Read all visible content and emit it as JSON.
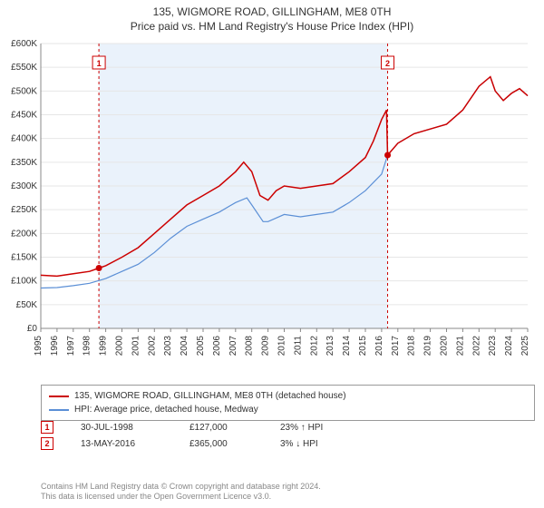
{
  "title": "135, WIGMORE ROAD, GILLINGHAM, ME8 0TH",
  "subtitle": "Price paid vs. HM Land Registry's House Price Index (HPI)",
  "chart": {
    "type": "line",
    "ylim": [
      0,
      600000
    ],
    "ytick_step": 50000,
    "ytick_labels": [
      "£0",
      "£50K",
      "£100K",
      "£150K",
      "£200K",
      "£250K",
      "£300K",
      "£350K",
      "£400K",
      "£450K",
      "£500K",
      "£550K",
      "£600K"
    ],
    "xlim": [
      1995,
      2025
    ],
    "xtick_step": 1,
    "xtick_labels": [
      "1995",
      "1996",
      "1997",
      "1998",
      "1999",
      "2000",
      "2001",
      "2002",
      "2003",
      "2004",
      "2005",
      "2006",
      "2007",
      "2008",
      "2009",
      "2010",
      "2011",
      "2012",
      "2013",
      "2014",
      "2015",
      "2016",
      "2017",
      "2018",
      "2019",
      "2020",
      "2021",
      "2022",
      "2023",
      "2024",
      "2025"
    ],
    "background_color": "#ffffff",
    "plotband_color": "#eaf2fb",
    "plotband_from": 1998.58,
    "plotband_to": 2016.37,
    "grid_color": "#e6e6e6",
    "axis_color": "#888888",
    "series": [
      {
        "name": "135, WIGMORE ROAD, GILLINGHAM, ME8 0TH (detached house)",
        "color": "#cc0000",
        "line_width": 1.5,
        "data": [
          [
            1995,
            112000
          ],
          [
            1996,
            110000
          ],
          [
            1997,
            115000
          ],
          [
            1998,
            120000
          ],
          [
            1998.58,
            127000
          ],
          [
            1999,
            132000
          ],
          [
            2000,
            150000
          ],
          [
            2001,
            170000
          ],
          [
            2002,
            200000
          ],
          [
            2003,
            230000
          ],
          [
            2004,
            260000
          ],
          [
            2005,
            280000
          ],
          [
            2006,
            300000
          ],
          [
            2007,
            330000
          ],
          [
            2007.5,
            350000
          ],
          [
            2008,
            330000
          ],
          [
            2008.5,
            280000
          ],
          [
            2009,
            270000
          ],
          [
            2009.5,
            290000
          ],
          [
            2010,
            300000
          ],
          [
            2011,
            295000
          ],
          [
            2012,
            300000
          ],
          [
            2013,
            305000
          ],
          [
            2014,
            330000
          ],
          [
            2015,
            360000
          ],
          [
            2015.5,
            395000
          ],
          [
            2016,
            440000
          ],
          [
            2016.3,
            460000
          ],
          [
            2016.37,
            365000
          ],
          [
            2017,
            390000
          ],
          [
            2018,
            410000
          ],
          [
            2019,
            420000
          ],
          [
            2020,
            430000
          ],
          [
            2021,
            460000
          ],
          [
            2022,
            510000
          ],
          [
            2022.7,
            530000
          ],
          [
            2023,
            500000
          ],
          [
            2023.5,
            480000
          ],
          [
            2024,
            495000
          ],
          [
            2024.5,
            505000
          ],
          [
            2025,
            490000
          ]
        ]
      },
      {
        "name": "HPI: Average price, detached house, Medway",
        "color": "#5b8fd6",
        "line_width": 1.2,
        "data": [
          [
            1995,
            85000
          ],
          [
            1996,
            86000
          ],
          [
            1997,
            90000
          ],
          [
            1998,
            95000
          ],
          [
            1999,
            105000
          ],
          [
            2000,
            120000
          ],
          [
            2001,
            135000
          ],
          [
            2002,
            160000
          ],
          [
            2003,
            190000
          ],
          [
            2004,
            215000
          ],
          [
            2005,
            230000
          ],
          [
            2006,
            245000
          ],
          [
            2007,
            265000
          ],
          [
            2007.7,
            275000
          ],
          [
            2008,
            260000
          ],
          [
            2008.7,
            225000
          ],
          [
            2009,
            225000
          ],
          [
            2010,
            240000
          ],
          [
            2011,
            235000
          ],
          [
            2012,
            240000
          ],
          [
            2013,
            245000
          ],
          [
            2014,
            265000
          ],
          [
            2015,
            290000
          ],
          [
            2016,
            325000
          ],
          [
            2016.37,
            365000
          ],
          [
            2017,
            390000
          ],
          [
            2018,
            410000
          ],
          [
            2019,
            420000
          ],
          [
            2020,
            430000
          ],
          [
            2021,
            460000
          ],
          [
            2022,
            510000
          ],
          [
            2022.7,
            530000
          ],
          [
            2023,
            500000
          ],
          [
            2023.5,
            480000
          ],
          [
            2024,
            495000
          ],
          [
            2024.5,
            505000
          ],
          [
            2025,
            490000
          ]
        ]
      }
    ],
    "markers": [
      {
        "x": 1998.58,
        "y": 127000,
        "label": "1",
        "color": "#cc0000"
      },
      {
        "x": 2016.37,
        "y": 365000,
        "label": "2",
        "color": "#cc0000"
      }
    ],
    "marker_labelbox_y": 18
  },
  "legend": {
    "items": [
      {
        "color": "#cc0000",
        "label": "135, WIGMORE ROAD, GILLINGHAM, ME8 0TH (detached house)"
      },
      {
        "color": "#5b8fd6",
        "label": "HPI: Average price, detached house, Medway"
      }
    ]
  },
  "sales": [
    {
      "n": "1",
      "date": "30-JUL-1998",
      "price": "£127,000",
      "diff": "23% ↑ HPI"
    },
    {
      "n": "2",
      "date": "13-MAY-2016",
      "price": "£365,000",
      "diff": "3% ↓ HPI"
    }
  ],
  "footer_l1": "Contains HM Land Registry data © Crown copyright and database right 2024.",
  "footer_l2": "This data is licensed under the Open Government Licence v3.0."
}
